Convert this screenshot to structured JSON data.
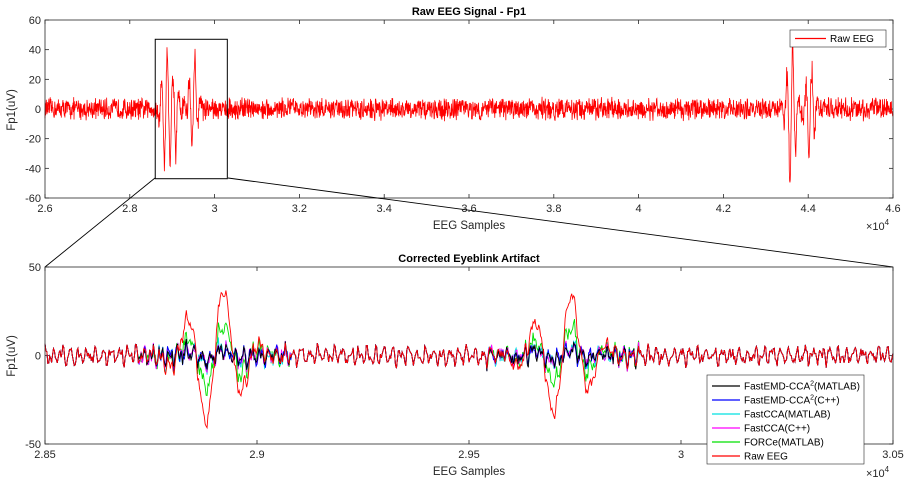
{
  "chart_data": [
    {
      "type": "line",
      "title": "Raw EEG Signal - Fp1",
      "xlabel": "EEG Samples",
      "ylabel": "Fp1(uV)",
      "x_multiplier": "×10",
      "x_multiplier_exp": "4",
      "xlim": [
        26000,
        46000
      ],
      "ylim": [
        -60,
        60
      ],
      "xticks": [
        2.6,
        2.8,
        3,
        3.2,
        3.4,
        3.6,
        3.8,
        4,
        4.2,
        4.4,
        4.6
      ],
      "yticks": [
        -60,
        -40,
        -20,
        0,
        20,
        40,
        60
      ],
      "legend_position": "top-right",
      "zoom_box": {
        "x": [
          28600,
          30300
        ],
        "y": [
          -47,
          47
        ]
      },
      "series": [
        {
          "name": "Raw EEG",
          "color": "#ff0000",
          "noise_amplitude_uv": 7,
          "events": [
            {
              "x": 28850,
              "peak": 44,
              "trough": -42
            },
            {
              "x": 29050,
              "peak": -32,
              "trough": 22
            },
            {
              "x": 29500,
              "peak": 42,
              "trough": -28
            },
            {
              "x": 43600,
              "peak": 52,
              "trough": -58
            },
            {
              "x": 44050,
              "peak": 34,
              "trough": -40
            }
          ]
        }
      ]
    },
    {
      "type": "line",
      "title": "Corrected Eyeblink Artifact",
      "xlabel": "EEG Samples",
      "ylabel": "Fp1(uV)",
      "x_multiplier": "×10",
      "x_multiplier_exp": "4",
      "xlim": [
        28500,
        30500
      ],
      "ylim": [
        -50,
        50
      ],
      "xticks": [
        2.85,
        2.9,
        2.95,
        3,
        3.05
      ],
      "yticks": [
        -50,
        0,
        50
      ],
      "legend_position": "bottom-right",
      "series": [
        {
          "name": "FastEMD-CCA",
          "sup": "2",
          "suffix": "(MATLAB)",
          "color": "#000000"
        },
        {
          "name": "FastEMD-CCA",
          "sup": "2",
          "suffix": "(C++)",
          "color": "#0000ff"
        },
        {
          "name": "FastCCA(MATLAB)",
          "sup": "",
          "suffix": "",
          "color": "#00e0e0"
        },
        {
          "name": "FastCCA(C++)",
          "sup": "",
          "suffix": "",
          "color": "#ff00ff"
        },
        {
          "name": "FORCe(MATLAB)",
          "sup": "",
          "suffix": "",
          "color": "#00e000"
        },
        {
          "name": "Raw EEG",
          "sup": "",
          "suffix": "",
          "color": "#ff0000"
        }
      ]
    }
  ]
}
